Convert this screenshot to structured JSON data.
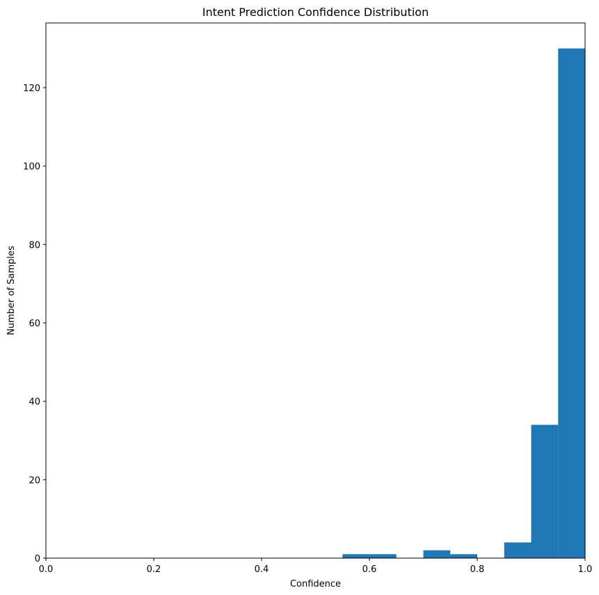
{
  "chart_data": {
    "type": "bar",
    "title": "Intent Prediction Confidence Distribution",
    "xlabel": "Confidence",
    "ylabel": "Number of Samples",
    "xlim": [
      0.0,
      1.0
    ],
    "ylim": [
      0,
      136.5
    ],
    "xticks": [
      "0.0",
      "0.2",
      "0.4",
      "0.6",
      "0.8",
      "1.0"
    ],
    "yticks": [
      "0",
      "20",
      "40",
      "60",
      "80",
      "100",
      "120"
    ],
    "grid": false,
    "bar_color": "#1f77b4",
    "bins": [
      {
        "x0": 0.55,
        "x1": 0.6,
        "count": 1
      },
      {
        "x0": 0.6,
        "x1": 0.65,
        "count": 1
      },
      {
        "x0": 0.7,
        "x1": 0.75,
        "count": 2
      },
      {
        "x0": 0.75,
        "x1": 0.8,
        "count": 1
      },
      {
        "x0": 0.85,
        "x1": 0.9,
        "count": 4
      },
      {
        "x0": 0.9,
        "x1": 0.95,
        "count": 34
      },
      {
        "x0": 0.95,
        "x1": 1.0,
        "count": 130
      }
    ]
  }
}
